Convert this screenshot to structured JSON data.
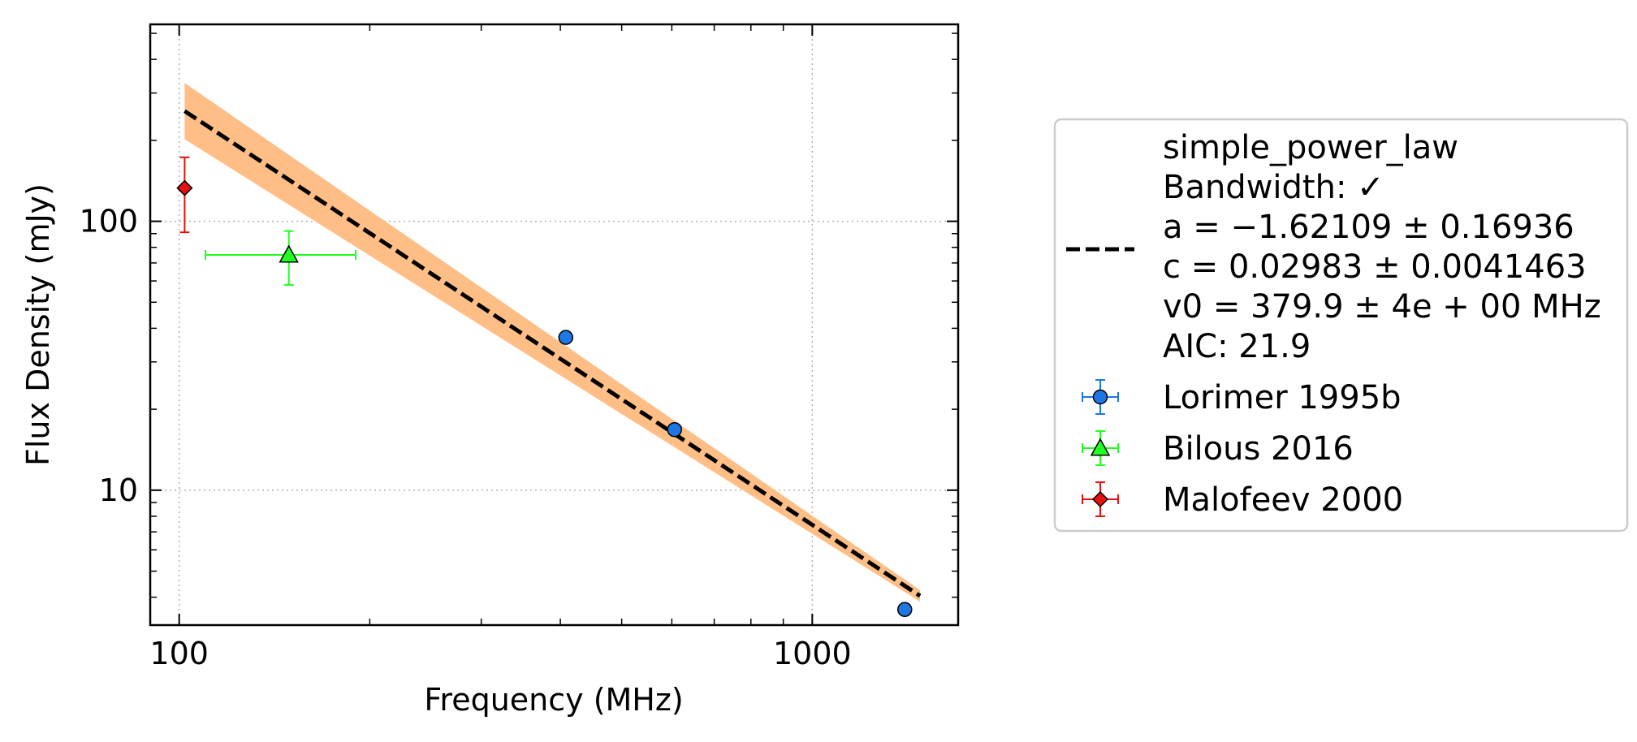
{
  "chart_data": {
    "type": "scatter",
    "xlabel": "Frequency (MHz)",
    "ylabel": "Flux Density (mJy)",
    "xscale": "log",
    "yscale": "log",
    "xlim": [
      90,
      1700
    ],
    "ylim": [
      3.15,
      540
    ],
    "x_ticks": [
      {
        "value": 100,
        "label": "100"
      },
      {
        "value": 1000,
        "label": "1000"
      }
    ],
    "y_ticks": [
      {
        "value": 10,
        "label": "10"
      },
      {
        "value": 100,
        "label": "100"
      }
    ],
    "grid": "dotted at major ticks",
    "fit": {
      "model": "simple_power_law",
      "x_range": [
        102,
        1480
      ],
      "a": -1.62109,
      "c": 0.02983,
      "v0_mhz": 379.9,
      "band_at_start": [
        202,
        327
      ],
      "band_at_end": [
        3.85,
        4.25
      ],
      "color": "#000000",
      "band_color": "#ffbe86",
      "label_lines": [
        "simple_power_law",
        "Bandwidth: ✓",
        "a = −1.62109 ± 0.16936",
        "c = 0.02983 ± 0.0041463",
        "v0 = 379.9 ± 4e + 00 MHz",
        "AIC: 21.9"
      ]
    },
    "series": [
      {
        "name": "Lorimer 1995b",
        "marker": "circle",
        "color": "#1f77e4",
        "points": [
          {
            "x": 408,
            "y": 37.0,
            "xerr": 0,
            "yerr": 0
          },
          {
            "x": 606,
            "y": 16.8,
            "xerr": 0,
            "yerr": 0
          },
          {
            "x": 1400,
            "y": 3.6,
            "xerr": 0,
            "yerr": 0
          }
        ]
      },
      {
        "name": "Bilous 2016",
        "marker": "triangle",
        "color": "#22ff22",
        "points": [
          {
            "x": 149,
            "y": 75.0,
            "xlo": 110,
            "xhi": 190,
            "ylo": 58.0,
            "yhi": 92.0
          }
        ]
      },
      {
        "name": "Malofeev 2000",
        "marker": "diamond",
        "color": "#e81010",
        "points": [
          {
            "x": 102,
            "y": 133.0,
            "xlo": 102,
            "xhi": 102,
            "ylo": 91.0,
            "yhi": 173.0
          }
        ]
      }
    ],
    "legend": {
      "placement": "outside right"
    }
  }
}
